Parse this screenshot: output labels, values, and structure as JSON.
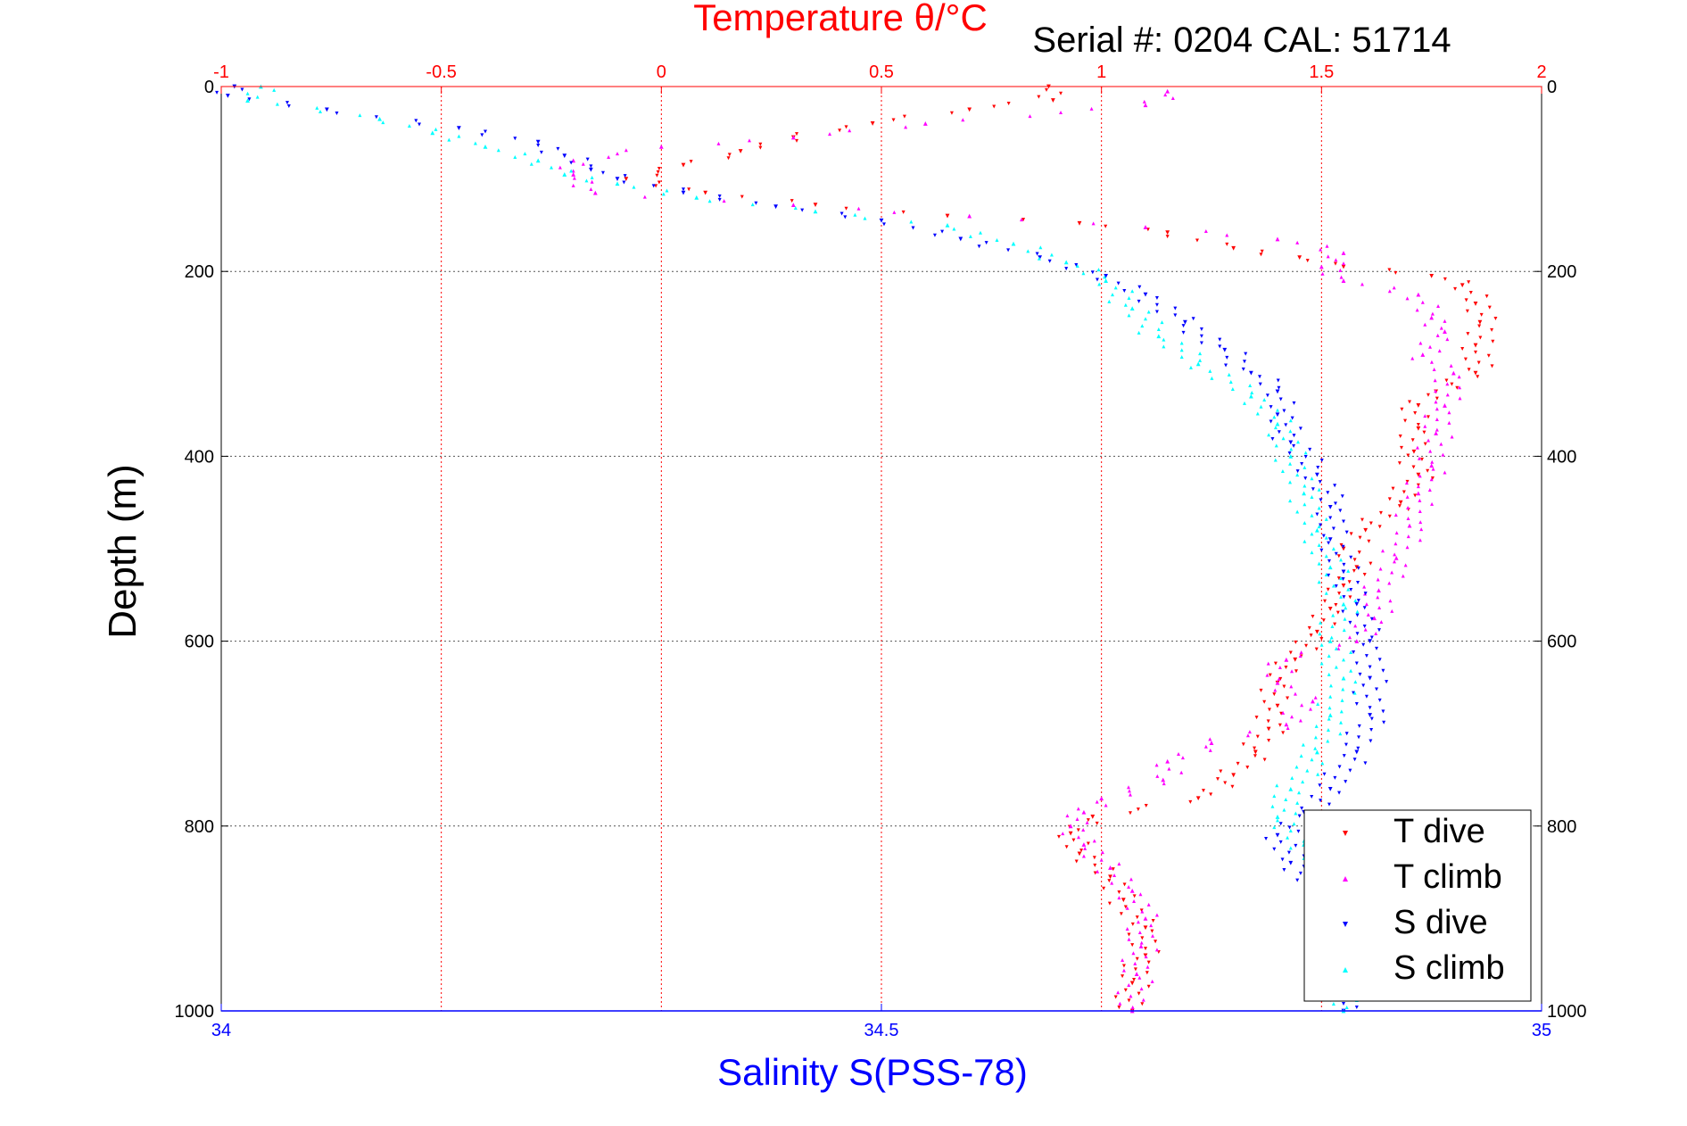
{
  "chart_data": {
    "type": "scatter",
    "title": "Temperature θ/°C",
    "annotation": "Serial #: 0204  CAL: 51714",
    "ylabel": "Depth (m)",
    "xlabel": "Salinity S(PSS-78)",
    "ylim": [
      0,
      1000
    ],
    "y_reversed": true,
    "y_ticks": [
      0,
      200,
      400,
      600,
      800,
      1000
    ],
    "y_tick_labels": [
      "0",
      "200",
      "400",
      "600",
      "800",
      "1000"
    ],
    "x_top": {
      "label": "Temperature θ/°C",
      "range": [
        -1,
        2
      ],
      "ticks": [
        -1,
        -0.5,
        0,
        0.5,
        1,
        1.5,
        2
      ],
      "tick_labels": [
        "-1",
        "-0.5",
        "0",
        "0.5",
        "1",
        "1.5",
        "2"
      ],
      "color": "#ff0000"
    },
    "x_bottom": {
      "label": "Salinity S(PSS-78)",
      "range": [
        34,
        35
      ],
      "ticks": [
        34,
        34.5,
        35
      ],
      "tick_labels": [
        "34",
        "34.5",
        "35"
      ],
      "color": "#0000ff"
    },
    "grid": true,
    "legend_position": "bottom-right",
    "series": [
      {
        "name": "T dive",
        "axis": "top",
        "color": "#ff0000",
        "marker": "triangle-down",
        "points": [
          [
            0.88,
            0
          ],
          [
            0.89,
            15
          ],
          [
            0.7,
            25
          ],
          [
            0.48,
            40
          ],
          [
            0.3,
            55
          ],
          [
            0.18,
            70
          ],
          [
            0.05,
            85
          ],
          [
            -0.08,
            100
          ],
          [
            0.1,
            115
          ],
          [
            0.35,
            128
          ],
          [
            0.65,
            140
          ],
          [
            0.95,
            148
          ],
          [
            1.15,
            158
          ],
          [
            1.3,
            175
          ],
          [
            1.45,
            185
          ],
          [
            1.55,
            195
          ],
          [
            1.75,
            205
          ],
          [
            1.82,
            215
          ],
          [
            1.85,
            235
          ],
          [
            1.86,
            255
          ],
          [
            1.85,
            280
          ],
          [
            1.85,
            310
          ],
          [
            1.76,
            330
          ],
          [
            1.72,
            345
          ],
          [
            1.72,
            370
          ],
          [
            1.71,
            395
          ],
          [
            1.72,
            420
          ],
          [
            1.68,
            450
          ],
          [
            1.6,
            480
          ],
          [
            1.55,
            500
          ],
          [
            1.58,
            520
          ],
          [
            1.55,
            540
          ],
          [
            1.52,
            565
          ],
          [
            1.49,
            590
          ],
          [
            1.44,
            620
          ],
          [
            1.4,
            645
          ],
          [
            1.4,
            670
          ],
          [
            1.38,
            695
          ],
          [
            1.35,
            720
          ],
          [
            1.3,
            745
          ],
          [
            1.22,
            770
          ],
          [
            0.98,
            790
          ],
          [
            0.93,
            808
          ],
          [
            0.95,
            830
          ],
          [
            1.02,
            855
          ],
          [
            1.05,
            880
          ],
          [
            1.1,
            910
          ],
          [
            1.1,
            940
          ],
          [
            1.07,
            970
          ],
          [
            1.07,
            1000
          ]
        ]
      },
      {
        "name": "T climb",
        "axis": "top",
        "color": "#ff00ff",
        "marker": "triangle-up",
        "points": [
          [
            1.15,
            5
          ],
          [
            1.1,
            20
          ],
          [
            0.6,
            40
          ],
          [
            0.3,
            55
          ],
          [
            0.0,
            65
          ],
          [
            -0.2,
            80
          ],
          [
            -0.2,
            95
          ],
          [
            -0.15,
            115
          ],
          [
            0.3,
            128
          ],
          [
            0.7,
            140
          ],
          [
            1.1,
            152
          ],
          [
            1.4,
            165
          ],
          [
            1.55,
            180
          ],
          [
            1.5,
            195
          ],
          [
            1.55,
            210
          ],
          [
            1.72,
            225
          ],
          [
            1.75,
            250
          ],
          [
            1.78,
            265
          ],
          [
            1.73,
            290
          ],
          [
            1.8,
            310
          ],
          [
            1.78,
            345
          ],
          [
            1.76,
            375
          ],
          [
            1.75,
            410
          ],
          [
            1.72,
            440
          ],
          [
            1.7,
            475
          ],
          [
            1.67,
            510
          ],
          [
            1.63,
            545
          ],
          [
            1.62,
            575
          ],
          [
            1.58,
            600
          ],
          [
            1.42,
            620
          ],
          [
            1.4,
            645
          ],
          [
            1.48,
            665
          ],
          [
            1.42,
            690
          ],
          [
            1.25,
            710
          ],
          [
            1.15,
            730
          ],
          [
            1.14,
            750
          ],
          [
            1.0,
            770
          ],
          [
            0.96,
            785
          ],
          [
            0.93,
            800
          ],
          [
            0.96,
            820
          ],
          [
            1.02,
            845
          ],
          [
            1.07,
            870
          ],
          [
            1.1,
            900
          ],
          [
            1.09,
            930
          ],
          [
            1.08,
            960
          ],
          [
            1.07,
            1000
          ]
        ]
      },
      {
        "name": "S dive",
        "axis": "bottom",
        "color": "#0000ff",
        "marker": "triangle-down",
        "points": [
          [
            34.01,
            0
          ],
          [
            34.005,
            10
          ],
          [
            34.08,
            25
          ],
          [
            34.18,
            45
          ],
          [
            34.24,
            60
          ],
          [
            34.26,
            75
          ],
          [
            34.28,
            90
          ],
          [
            34.3,
            100
          ],
          [
            34.35,
            115
          ],
          [
            34.42,
            130
          ],
          [
            34.5,
            145
          ],
          [
            34.56,
            165
          ],
          [
            34.62,
            185
          ],
          [
            34.67,
            205
          ],
          [
            34.7,
            225
          ],
          [
            34.73,
            255
          ],
          [
            34.76,
            285
          ],
          [
            34.78,
            310
          ],
          [
            34.8,
            330
          ],
          [
            34.8,
            355
          ],
          [
            34.81,
            385
          ],
          [
            34.83,
            420
          ],
          [
            34.84,
            455
          ],
          [
            34.84,
            490
          ],
          [
            34.85,
            525
          ],
          [
            34.86,
            560
          ],
          [
            34.87,
            600
          ],
          [
            34.87,
            640
          ],
          [
            34.87,
            680
          ],
          [
            34.86,
            720
          ],
          [
            34.84,
            760
          ],
          [
            34.82,
            785
          ],
          [
            34.8,
            810
          ],
          [
            34.81,
            840
          ],
          [
            34.83,
            870
          ],
          [
            34.85,
            900
          ],
          [
            34.86,
            930
          ],
          [
            34.85,
            965
          ],
          [
            34.85,
            1000
          ]
        ]
      },
      {
        "name": "S climb",
        "axis": "bottom",
        "color": "#00ffff",
        "marker": "triangle-up",
        "points": [
          [
            34.03,
            0
          ],
          [
            34.02,
            15
          ],
          [
            34.12,
            35
          ],
          [
            34.16,
            50
          ],
          [
            34.2,
            65
          ],
          [
            34.24,
            80
          ],
          [
            34.26,
            95
          ],
          [
            34.3,
            105
          ],
          [
            34.36,
            120
          ],
          [
            34.45,
            135
          ],
          [
            34.55,
            150
          ],
          [
            34.6,
            170
          ],
          [
            34.64,
            190
          ],
          [
            34.67,
            210
          ],
          [
            34.69,
            240
          ],
          [
            34.71,
            270
          ],
          [
            34.74,
            300
          ],
          [
            34.78,
            335
          ],
          [
            34.8,
            365
          ],
          [
            34.81,
            400
          ],
          [
            34.82,
            440
          ],
          [
            34.83,
            480
          ],
          [
            34.84,
            520
          ],
          [
            34.85,
            560
          ],
          [
            34.84,
            600
          ],
          [
            34.85,
            640
          ],
          [
            34.84,
            680
          ],
          [
            34.83,
            720
          ],
          [
            34.81,
            760
          ],
          [
            34.8,
            790
          ],
          [
            34.82,
            820
          ],
          [
            34.84,
            850
          ],
          [
            34.85,
            880
          ],
          [
            34.86,
            910
          ],
          [
            34.85,
            950
          ],
          [
            34.85,
            1000
          ]
        ]
      }
    ]
  }
}
